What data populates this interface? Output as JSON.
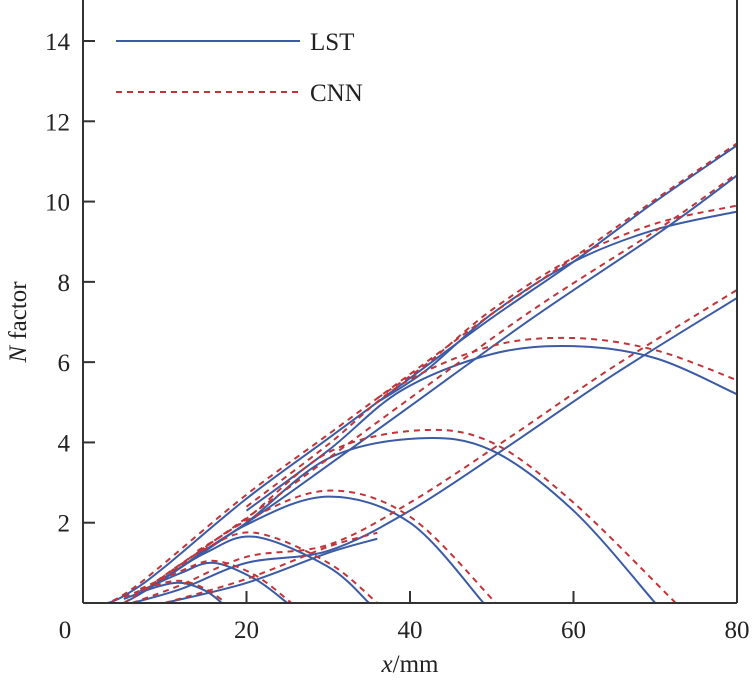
{
  "chart_data": {
    "type": "line",
    "xlabel_var": "x",
    "xlabel_unit": "/mm",
    "ylabel_var": "N",
    "ylabel_text": " factor",
    "xlim": [
      0,
      80
    ],
    "ylim": [
      0,
      14
    ],
    "xticks": [
      0,
      20,
      40,
      60,
      80
    ],
    "yticks": [
      2,
      4,
      6,
      8,
      10,
      12,
      14
    ],
    "legend": {
      "position": "top-left",
      "entries": [
        {
          "label": "LST",
          "color": "#3b5ba5",
          "style": "solid"
        },
        {
          "label": "CNN",
          "color": "#c0353a",
          "style": "dashed"
        }
      ]
    },
    "series": [
      {
        "name": "LST",
        "color": "#3b5ba5",
        "curves": [
          [
            [
              0,
              0
            ],
            [
              3,
              0
            ],
            [
              6,
              0.3
            ],
            [
              10,
              0.9
            ],
            [
              20,
              2.6
            ],
            [
              30,
              4.1
            ],
            [
              40,
              5.6
            ],
            [
              50,
              7.1
            ],
            [
              60,
              8.5
            ],
            [
              70,
              10
            ],
            [
              80,
              11.4
            ]
          ],
          [
            [
              5,
              0
            ],
            [
              8,
              0.35
            ],
            [
              15,
              1.3
            ],
            [
              25,
              2.7
            ],
            [
              40,
              4.9
            ],
            [
              55,
              7.1
            ],
            [
              71,
              9.3
            ],
            [
              80,
              10.65
            ]
          ],
          [
            [
              6,
              0
            ],
            [
              12,
              0.35
            ],
            [
              20,
              1.0
            ],
            [
              30,
              1.3
            ],
            [
              40,
              2.3
            ],
            [
              52,
              3.9
            ],
            [
              65,
              5.7
            ],
            [
              80,
              7.6
            ]
          ],
          [
            [
              10,
              0
            ],
            [
              20,
              0.5
            ],
            [
              30,
              1.25
            ],
            [
              36,
              1.6
            ]
          ],
          [
            [
              36,
              5.0
            ],
            [
              42,
              5.8
            ],
            [
              50,
              7.2
            ],
            [
              60,
              8.5
            ],
            [
              70,
              9.3
            ],
            [
              80,
              9.75
            ]
          ],
          [
            [
              20,
              2.3
            ],
            [
              30,
              3.8
            ],
            [
              39,
              5.3
            ],
            [
              50,
              6.2
            ],
            [
              60,
              6.4
            ],
            [
              70,
              6.1
            ],
            [
              80,
              5.2
            ]
          ],
          [
            [
              14,
              1.2
            ],
            [
              20,
              2.0
            ],
            [
              30,
              3.6
            ],
            [
              41,
              4.1
            ],
            [
              50,
              3.8
            ],
            [
              60,
              2.3
            ],
            [
              70,
              0
            ]
          ],
          [
            [
              11,
              0.75
            ],
            [
              20,
              1.95
            ],
            [
              30,
              2.65
            ],
            [
              40,
              2.0
            ],
            [
              49,
              0
            ]
          ],
          [
            [
              9,
              0.5
            ],
            [
              15,
              1.25
            ],
            [
              21,
              1.65
            ],
            [
              30,
              0.9
            ],
            [
              35,
              0
            ]
          ],
          [
            [
              7,
              0.3
            ],
            [
              12,
              0.75
            ],
            [
              16,
              1.0
            ],
            [
              21,
              0.6
            ],
            [
              25,
              0
            ]
          ],
          [
            [
              5,
              0.1
            ],
            [
              9,
              0.4
            ],
            [
              12,
              0.5
            ],
            [
              15,
              0.3
            ],
            [
              17,
              0
            ]
          ]
        ]
      },
      {
        "name": "CNN",
        "color": "#c0353a",
        "curves": [
          [
            [
              1,
              0
            ],
            [
              3,
              0
            ],
            [
              6,
              0.35
            ],
            [
              10,
              1.0
            ],
            [
              20,
              2.7
            ],
            [
              30,
              4.2
            ],
            [
              40,
              5.7
            ],
            [
              50,
              7.2
            ],
            [
              60,
              8.6
            ],
            [
              70,
              10.05
            ],
            [
              80,
              11.45
            ]
          ],
          [
            [
              5,
              0
            ],
            [
              8,
              0.4
            ],
            [
              15,
              1.4
            ],
            [
              25,
              2.85
            ],
            [
              40,
              5.1
            ],
            [
              55,
              7.3
            ],
            [
              71,
              9.4
            ],
            [
              80,
              10.7
            ]
          ],
          [
            [
              6,
              0
            ],
            [
              12,
              0.45
            ],
            [
              20,
              1.15
            ],
            [
              30,
              1.45
            ],
            [
              40,
              2.5
            ],
            [
              52,
              4.1
            ],
            [
              65,
              5.9
            ],
            [
              80,
              7.8
            ]
          ],
          [
            [
              10,
              0
            ],
            [
              20,
              0.6
            ],
            [
              30,
              1.4
            ],
            [
              36,
              1.75
            ]
          ],
          [
            [
              36,
              5.1
            ],
            [
              42,
              5.95
            ],
            [
              50,
              7.3
            ],
            [
              60,
              8.6
            ],
            [
              70,
              9.45
            ],
            [
              80,
              9.9
            ]
          ],
          [
            [
              20,
              2.4
            ],
            [
              30,
              3.95
            ],
            [
              39,
              5.45
            ],
            [
              50,
              6.4
            ],
            [
              60,
              6.6
            ],
            [
              70,
              6.3
            ],
            [
              80,
              5.55
            ]
          ],
          [
            [
              14,
              1.3
            ],
            [
              20,
              2.1
            ],
            [
              30,
              3.75
            ],
            [
              41,
              4.3
            ],
            [
              50,
              4.0
            ],
            [
              60,
              2.5
            ],
            [
              72.5,
              0
            ]
          ],
          [
            [
              11,
              0.8
            ],
            [
              20,
              2.05
            ],
            [
              30,
              2.8
            ],
            [
              40,
              2.15
            ],
            [
              50.5,
              0
            ]
          ],
          [
            [
              9,
              0.55
            ],
            [
              15,
              1.35
            ],
            [
              21,
              1.75
            ],
            [
              30,
              1.0
            ],
            [
              36,
              0
            ]
          ],
          [
            [
              7,
              0.35
            ],
            [
              12,
              0.8
            ],
            [
              16,
              1.05
            ],
            [
              21,
              0.7
            ],
            [
              25.5,
              0
            ]
          ],
          [
            [
              5,
              0.15
            ],
            [
              9,
              0.45
            ],
            [
              12,
              0.55
            ],
            [
              15,
              0.35
            ],
            [
              17.5,
              0
            ]
          ]
        ]
      }
    ]
  }
}
